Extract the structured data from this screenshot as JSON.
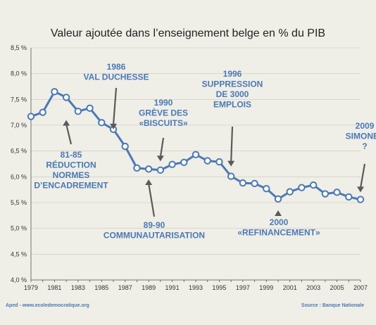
{
  "chart_data": {
    "type": "line",
    "title": "Valeur ajoutée dans l’enseignement belge en % du PIB",
    "xlabel": "",
    "ylabel": "",
    "x": [
      1979,
      1980,
      1981,
      1982,
      1983,
      1984,
      1985,
      1986,
      1987,
      1988,
      1989,
      1990,
      1991,
      1992,
      1993,
      1994,
      1995,
      1996,
      1997,
      1998,
      1999,
      2000,
      2001,
      2002,
      2003,
      2004,
      2005,
      2006,
      2007
    ],
    "series": [
      {
        "name": "",
        "values": [
          7.17,
          7.25,
          7.65,
          7.54,
          7.27,
          7.33,
          7.05,
          6.92,
          6.59,
          6.17,
          6.15,
          6.13,
          6.24,
          6.28,
          6.43,
          6.31,
          6.29,
          6.01,
          5.88,
          5.87,
          5.77,
          5.57,
          5.71,
          5.79,
          5.84,
          5.67,
          5.7,
          5.61,
          5.56
        ]
      }
    ],
    "ylim": [
      4.0,
      8.5
    ],
    "xlim": [
      1979,
      2007
    ],
    "yticks": [
      "4,0 %",
      "4,5 %",
      "5,0 %",
      "5,5 %",
      "6,0 %",
      "6,5 %",
      "7,0 %",
      "7,5 %",
      "8,0 %",
      "8,5 %"
    ],
    "xticks": [
      "1979",
      "1981",
      "1983",
      "1985",
      "1987",
      "1989",
      "1991",
      "1993",
      "1995",
      "1997",
      "1999",
      "2001",
      "2003",
      "2005",
      "2007"
    ],
    "grid": true,
    "line_color": "#4a79b5",
    "annotations": [
      {
        "lines": [
          "1986",
          "VAL DUCHESSE"
        ],
        "target": [
          1986,
          6.92
        ]
      },
      {
        "lines": [
          "81-85",
          "RÉDUCTION",
          "NORMES",
          "D’ENCADREMENT"
        ],
        "target": [
          1982,
          7.1
        ]
      },
      {
        "lines": [
          "1990",
          "GRÈVE DES",
          "«BISCUITS»"
        ],
        "target": [
          1990,
          6.3
        ]
      },
      {
        "lines": [
          "89-90",
          "COMMUNAUTARISATION"
        ],
        "target": [
          1989,
          5.95
        ]
      },
      {
        "lines": [
          "1996",
          "SUPPRESSION",
          "DE 3000",
          "EMPLOIS"
        ],
        "target": [
          1996,
          6.2
        ]
      },
      {
        "lines": [
          "2000",
          "«REFINANCEMENT»"
        ],
        "target": [
          2000,
          5.35
        ]
      },
      {
        "lines": [
          "2009",
          "SIMONET",
          "?"
        ],
        "target": [
          2007,
          5.7
        ]
      }
    ]
  },
  "footer": {
    "left": "Aped - www.ecoledemocratique.org",
    "right": "Source : Banque Nationale"
  },
  "colors": {
    "accent": "#4a79b5",
    "background": "#efeee7"
  }
}
